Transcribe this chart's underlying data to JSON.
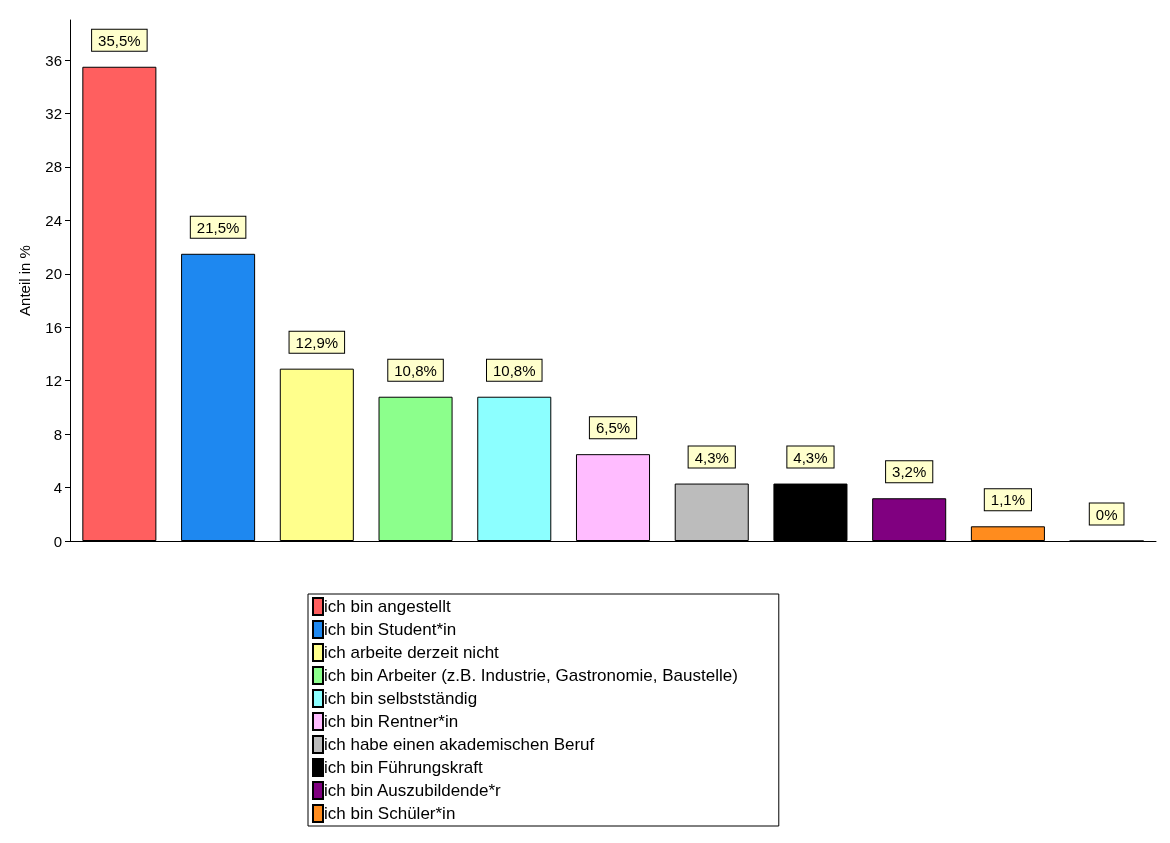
{
  "chart_data": {
    "type": "bar",
    "ylabel": "Anteil in %",
    "categories": [
      null,
      null,
      null,
      null,
      null,
      null,
      null,
      null,
      null,
      null,
      null
    ],
    "ylim": [
      0,
      39
    ],
    "yticks": [
      0,
      4,
      8,
      12,
      16,
      20,
      24,
      28,
      32,
      36
    ],
    "grid": false,
    "legend": "bottom",
    "series": [
      {
        "name": "ich bin angestellt",
        "color": "#ff5f5f",
        "values": [
          35.5,
          null,
          null,
          null,
          null,
          null,
          null,
          null,
          null,
          null,
          null
        ],
        "value_labels": [
          "35,5%",
          null,
          null,
          null,
          null,
          null,
          null,
          null,
          null,
          null,
          null
        ]
      },
      {
        "name": "ich bin Student*in",
        "color": "#1e88f0",
        "values": [
          null,
          21.5,
          null,
          null,
          null,
          null,
          null,
          null,
          null,
          null,
          null
        ],
        "value_labels": [
          null,
          "21,5%",
          null,
          null,
          null,
          null,
          null,
          null,
          null,
          null,
          null
        ]
      },
      {
        "name": "ich arbeite derzeit nicht",
        "color": "#ffff8c",
        "values": [
          null,
          null,
          12.9,
          null,
          null,
          null,
          null,
          null,
          null,
          null,
          null
        ],
        "value_labels": [
          null,
          null,
          "12,9%",
          null,
          null,
          null,
          null,
          null,
          null,
          null,
          null
        ]
      },
      {
        "name": "ich bin Arbeiter (z.B. Industrie, Gastronomie, Baustelle)",
        "color": "#8cff8c",
        "values": [
          null,
          null,
          null,
          10.8,
          null,
          null,
          null,
          null,
          null,
          null,
          null
        ],
        "value_labels": [
          null,
          null,
          null,
          "10,8%",
          null,
          null,
          null,
          null,
          null,
          null,
          null
        ]
      },
      {
        "name": "ich bin selbstständig",
        "color": "#8cffff",
        "values": [
          null,
          null,
          null,
          null,
          10.8,
          null,
          null,
          null,
          null,
          null,
          null
        ],
        "value_labels": [
          null,
          null,
          null,
          null,
          "10,8%",
          null,
          null,
          null,
          null,
          null,
          null
        ]
      },
      {
        "name": "ich bin Rentner*in",
        "color": "#ffbcff",
        "values": [
          null,
          null,
          null,
          null,
          null,
          6.5,
          null,
          null,
          null,
          null,
          null
        ],
        "value_labels": [
          null,
          null,
          null,
          null,
          null,
          "6,5%",
          null,
          null,
          null,
          null,
          null
        ]
      },
      {
        "name": "ich habe einen akademischen Beruf",
        "color": "#bcbcbc",
        "values": [
          null,
          null,
          null,
          null,
          null,
          null,
          4.3,
          null,
          null,
          null,
          null
        ],
        "value_labels": [
          null,
          null,
          null,
          null,
          null,
          null,
          "4,3%",
          null,
          null,
          null,
          null
        ]
      },
      {
        "name": "ich bin Führungskraft",
        "color": "#000000",
        "values": [
          null,
          null,
          null,
          null,
          null,
          null,
          null,
          4.3,
          null,
          null,
          null
        ],
        "value_labels": [
          null,
          null,
          null,
          null,
          null,
          null,
          null,
          "4,3%",
          null,
          null,
          null
        ]
      },
      {
        "name": "ich bin Auszubildende*r",
        "color": "#800080",
        "values": [
          null,
          null,
          null,
          null,
          null,
          null,
          null,
          null,
          3.2,
          null,
          null
        ],
        "value_labels": [
          null,
          null,
          null,
          null,
          null,
          null,
          null,
          null,
          "3,2%",
          null,
          null
        ]
      },
      {
        "name": "ich bin Schüler*in",
        "color": "#ff8c1e",
        "values": [
          null,
          null,
          null,
          null,
          null,
          null,
          null,
          null,
          null,
          1.1,
          null
        ],
        "value_labels": [
          null,
          null,
          null,
          null,
          null,
          null,
          null,
          null,
          null,
          "1,1%",
          null
        ]
      },
      {
        "color": "#000000",
        "values": [
          null,
          null,
          null,
          null,
          null,
          null,
          null,
          null,
          null,
          null,
          0
        ],
        "value_labels": [
          null,
          null,
          null,
          null,
          null,
          null,
          null,
          null,
          null,
          null,
          "0%"
        ]
      }
    ]
  }
}
